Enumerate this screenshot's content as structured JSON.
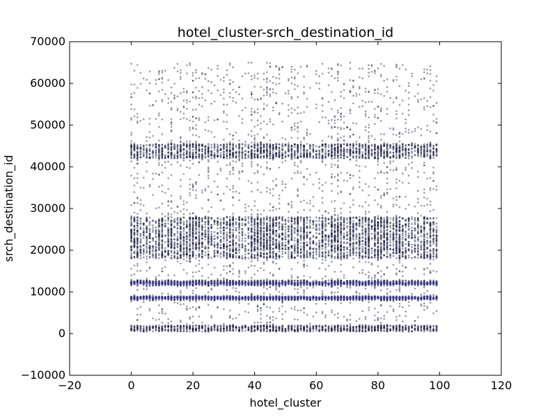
{
  "chart_data": {
    "type": "scatter",
    "title": "hotel_cluster-srch_destination_id",
    "xlabel": "hotel_cluster",
    "ylabel": "srch_destination_id",
    "xlim": [
      -20,
      120
    ],
    "ylim": [
      -10000,
      70000
    ],
    "xticks": [
      -20,
      0,
      20,
      40,
      60,
      80,
      100,
      120
    ],
    "yticks": [
      -10000,
      0,
      10000,
      20000,
      30000,
      40000,
      50000,
      60000,
      70000
    ],
    "xtick_labels": [
      "−20",
      "0",
      "20",
      "40",
      "60",
      "80",
      "100",
      "120"
    ],
    "ytick_labels": [
      "−10000",
      "0",
      "10000",
      "20000",
      "30000",
      "40000",
      "50000",
      "60000",
      "70000"
    ],
    "grid": false,
    "series": [
      {
        "x_range": [
          0,
          99
        ],
        "x_step": 1,
        "marker_color": "#1a1a40",
        "marker_alpha": 0.45,
        "dense_bands_y": [
          [
            500,
            2000
          ],
          [
            8000,
            9000
          ],
          [
            11500,
            12800
          ],
          [
            18000,
            28000
          ],
          [
            42000,
            45500
          ]
        ],
        "sparse_y_range": [
          500,
          65000
        ],
        "highlight_bands_y": [
          [
            8400,
            8800
          ],
          [
            11900,
            12400
          ]
        ],
        "highlight_color": "#3b3b9a"
      }
    ]
  }
}
